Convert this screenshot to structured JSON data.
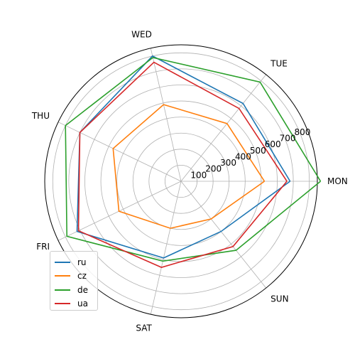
{
  "chart_data": {
    "type": "radar",
    "categories": [
      "MON",
      "TUE",
      "WED",
      "THU",
      "FRI",
      "SAT",
      "SUN"
    ],
    "radial_ticks": [
      "100",
      "200",
      "300",
      "400",
      "500",
      "600",
      "700",
      "800"
    ],
    "rmax": 850,
    "grid": true,
    "legend_position": "lower-left",
    "series": [
      {
        "name": "ru",
        "color": "#1f77b4",
        "values": [
          680,
          620,
          800,
          700,
          720,
          490,
          400
        ]
      },
      {
        "name": "cz",
        "color": "#ff7f0e",
        "values": [
          520,
          460,
          490,
          470,
          430,
          300,
          300
        ]
      },
      {
        "name": "de",
        "color": "#2ca02c",
        "values": [
          870,
          790,
          790,
          800,
          790,
          510,
          550
        ]
      },
      {
        "name": "ua",
        "color": "#d62728",
        "values": [
          660,
          580,
          760,
          700,
          710,
          550,
          520
        ]
      }
    ]
  }
}
